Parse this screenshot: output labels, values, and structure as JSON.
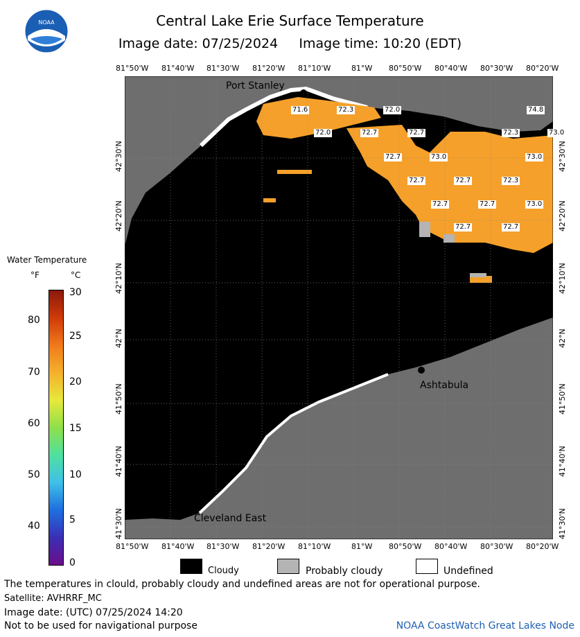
{
  "header": {
    "title": "Central Lake Erie Surface Temperature",
    "subtitle": "Image date: 07/25/2024     Image time: 10:20 (EDT)"
  },
  "axes": {
    "top_lon": [
      "81°50'W",
      "81°40'W",
      "81°30'W",
      "81°20'W",
      "81°10'W",
      "81°W",
      "80°50'W",
      "80°40'W",
      "80°30'W",
      "80°20'W"
    ],
    "bottom_lon": [
      "81°50'W",
      "81°40'W",
      "81°30'W",
      "81°20'W",
      "81°10'W",
      "81°W",
      "80°50'W",
      "80°40'W",
      "80°30'W",
      "80°20'W"
    ],
    "left_lat": [
      "42°30'N",
      "42°20'N",
      "42°10'N",
      "42°N",
      "41°50'N",
      "41°40'N",
      "41°30'N"
    ],
    "right_lat": [
      "42°30'N",
      "42°20'N",
      "42°10'N",
      "42°N",
      "41°50'N",
      "41°40'N",
      "41°30'N"
    ]
  },
  "places": {
    "port_stanley": "Port Stanley",
    "ashtabula": "Ashtabula",
    "cleveland_east": "Cleveland East"
  },
  "temperature_labels": [
    "71.6",
    "72.3",
    "72.0",
    "72.0",
    "72.7",
    "72.7",
    "74.8",
    "72.3",
    "73.0",
    "72.7",
    "73.0",
    "73.0",
    "72.7",
    "72.7",
    "72.3",
    "72.7",
    "72.7",
    "73.0",
    "72.7",
    "72.7"
  ],
  "legend": {
    "title": "Water Temperature",
    "unit_f": "°F",
    "unit_c": "°C",
    "f_values": [
      "80",
      "70",
      "60",
      "50",
      "40"
    ],
    "c_values": [
      "30",
      "25",
      "20",
      "15",
      "10",
      "5",
      "0"
    ],
    "colors": [
      "#6a0d8a",
      "#3b2fb5",
      "#1e6fe0",
      "#3fc0e8",
      "#4fe0a0",
      "#8ee04a",
      "#e8e83a",
      "#f5b02c",
      "#f07a1a",
      "#d03a0a",
      "#8a1a0a"
    ]
  },
  "key": {
    "cloudy": "Cloudy",
    "probably_cloudy": "Probably cloudy",
    "undefined": "Undefined"
  },
  "footer": {
    "note": "The temperatures in clould, probably cloudy and undefined areas are not for operational purpose.",
    "satellite": "Satellite: AVHRRF_MC",
    "utc": "Image date: (UTC) 07/25/2024  14:20",
    "nav": "Not to be used for navigational purpose",
    "credit": "NOAA CoastWatch Great Lakes Node"
  },
  "colors": {
    "land": "#6e6e6e",
    "cloud": "#000000",
    "warm": "#f5a02a",
    "probably_cloudy": "#b4b4b4"
  }
}
